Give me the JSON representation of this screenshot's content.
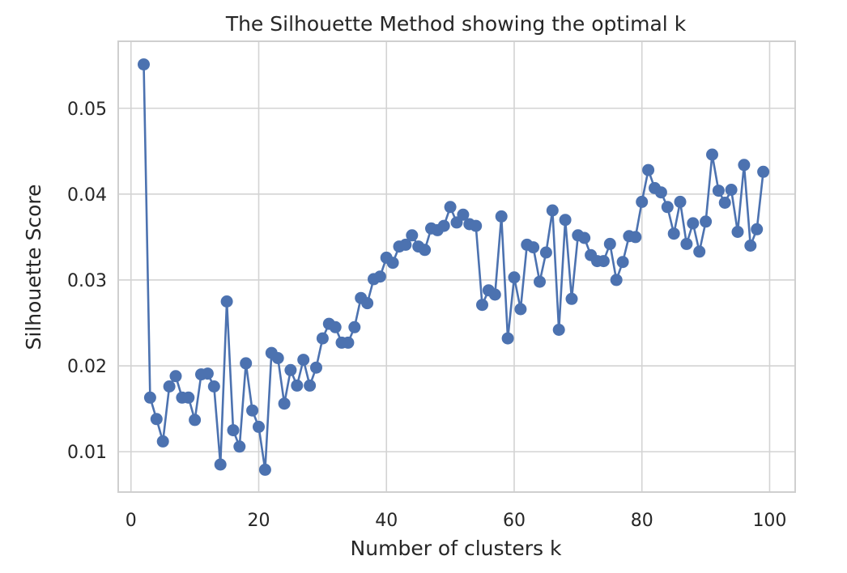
{
  "chart_data": {
    "type": "line",
    "title": "The Silhouette Method showing the optimal k",
    "xlabel": "Number of clusters k",
    "ylabel": "Silhouette Score",
    "xlim": [
      -2,
      104
    ],
    "ylim": [
      0.0053,
      0.0578
    ],
    "xticks": [
      0,
      20,
      40,
      60,
      80,
      100
    ],
    "xtick_labels": [
      "0",
      "20",
      "40",
      "60",
      "80",
      "100"
    ],
    "yticks": [
      0.01,
      0.02,
      0.03,
      0.04,
      0.05
    ],
    "ytick_labels": [
      "0.01",
      "0.02",
      "0.03",
      "0.04",
      "0.05"
    ],
    "grid": true,
    "marker": "circle",
    "line_color": "#4c72b0",
    "series": [
      {
        "x": [
          2,
          3,
          4,
          5,
          6,
          7,
          8,
          9,
          10,
          11,
          12,
          13,
          14,
          15,
          16,
          17,
          18,
          19,
          20,
          21,
          22,
          23,
          24,
          25,
          26,
          27,
          28,
          29,
          30,
          31,
          32,
          33,
          34,
          35,
          36,
          37,
          38,
          39,
          40,
          41,
          42,
          43,
          44,
          45,
          46,
          47,
          48,
          49,
          50,
          51,
          52,
          53,
          54,
          55,
          56,
          57,
          58,
          59,
          60,
          61,
          62,
          63,
          64,
          65,
          66,
          67,
          68,
          69,
          70,
          71,
          72,
          73,
          74,
          75,
          76,
          77,
          78,
          79,
          80,
          81,
          82,
          83,
          84,
          85,
          86,
          87,
          88,
          89,
          90,
          91,
          92,
          93,
          94,
          95,
          96,
          97,
          98,
          99
        ],
        "values": [
          0.0551,
          0.0163,
          0.0138,
          0.0112,
          0.0176,
          0.0188,
          0.0163,
          0.0163,
          0.0137,
          0.019,
          0.0191,
          0.0176,
          0.0085,
          0.0275,
          0.0125,
          0.0106,
          0.0203,
          0.0148,
          0.0129,
          0.0079,
          0.0215,
          0.0209,
          0.0156,
          0.0195,
          0.0177,
          0.0207,
          0.0177,
          0.0198,
          0.0232,
          0.0249,
          0.0245,
          0.0227,
          0.0227,
          0.0245,
          0.0279,
          0.0273,
          0.0301,
          0.0304,
          0.0326,
          0.032,
          0.0339,
          0.0341,
          0.0352,
          0.0339,
          0.0335,
          0.036,
          0.0358,
          0.0363,
          0.0385,
          0.0367,
          0.0376,
          0.0365,
          0.0363,
          0.0271,
          0.0288,
          0.0283,
          0.0374,
          0.0232,
          0.0303,
          0.0266,
          0.0341,
          0.0338,
          0.0298,
          0.0332,
          0.0381,
          0.0242,
          0.037,
          0.0278,
          0.0352,
          0.0349,
          0.0329,
          0.0322,
          0.0322,
          0.0342,
          0.03,
          0.0321,
          0.0351,
          0.035,
          0.0391,
          0.0428,
          0.0407,
          0.0402,
          0.0385,
          0.0354,
          0.0391,
          0.0342,
          0.0366,
          0.0333,
          0.0368,
          0.0446,
          0.0404,
          0.039,
          0.0405,
          0.0356,
          0.0434,
          0.034,
          0.0359,
          0.0426
        ]
      }
    ]
  }
}
